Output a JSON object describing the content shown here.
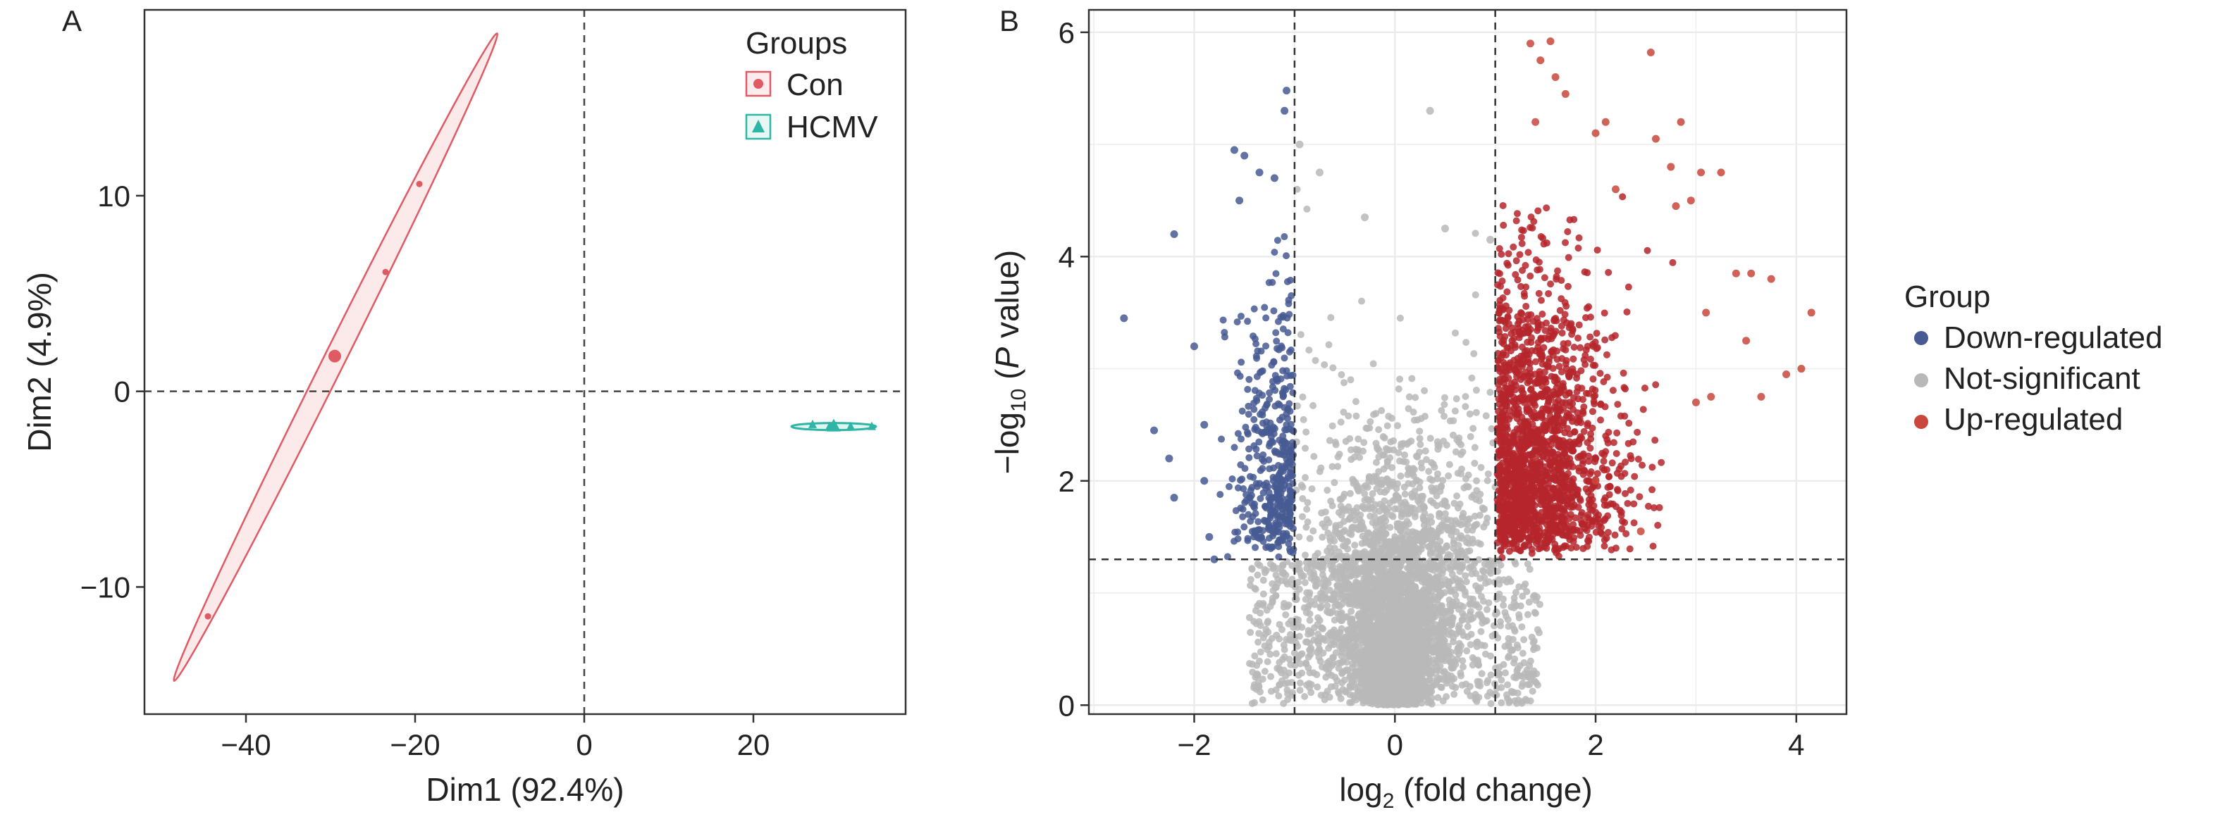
{
  "panels": {
    "a_label": "A",
    "b_label": "B"
  },
  "colors": {
    "con": "#e05a63",
    "hcmv": "#2fb5a5",
    "down": "#475a93",
    "ns": "#b8b8b8",
    "up": "#b5262b",
    "up_light": "#c9473b"
  },
  "chart_data": [
    {
      "type": "scatter",
      "xlabel": "Dim1 (92.4%)",
      "ylabel": "Dim2 (4.9%)",
      "xlim": [
        -52,
        38
      ],
      "ylim": [
        -16.5,
        19.5
      ],
      "xticks": [
        -40,
        -20,
        0,
        20
      ],
      "xtick_labels": [
        "−40",
        "−20",
        "0",
        "20"
      ],
      "yticks": [
        -10,
        0,
        10
      ],
      "ytick_labels": [
        "−10",
        "0",
        "10"
      ],
      "reference_lines": {
        "x": 0,
        "y": 0
      },
      "grid": false,
      "legend_position": "top-right",
      "legend_title": "Groups",
      "series": [
        {
          "name": "Con",
          "marker": "circle",
          "points": [
            [
              -44.5,
              -11.5
            ],
            [
              -29.5,
              1.7
            ],
            [
              -23.5,
              6.1
            ],
            [
              -19.5,
              10.6
            ]
          ],
          "centroid": [
            -29.5,
            1.8
          ],
          "ellipse": [
            [
              -48.5,
              -14.8
            ],
            [
              -10.3,
              18.3
            ]
          ]
        },
        {
          "name": "HCMV",
          "marker": "triangle",
          "points": [
            [
              27.0,
              -1.7
            ],
            [
              29.0,
              -1.8
            ],
            [
              31.5,
              -1.8
            ],
            [
              34.0,
              -1.8
            ]
          ],
          "centroid": [
            29.5,
            -1.8
          ],
          "ellipse": [
            [
              24.5,
              -1.8
            ],
            [
              34.5,
              -1.8
            ]
          ]
        }
      ]
    },
    {
      "type": "scatter",
      "xlabel_main": "log",
      "xlabel_sub": "2",
      "xlabel_rest": " (fold change)",
      "ylabel_pre": "−log",
      "ylabel_sub": "10",
      "ylabel_open": " (",
      "ylabel_p": "P",
      "ylabel_close": " value)",
      "xlim": [
        -3.05,
        4.5
      ],
      "ylim": [
        -0.08,
        6.2
      ],
      "xticks": [
        -2,
        0,
        2,
        4
      ],
      "xtick_labels": [
        "−2",
        "0",
        "2",
        "4"
      ],
      "yticks": [
        0,
        2,
        4,
        6
      ],
      "ytick_labels": [
        "0",
        "2",
        "4",
        "6"
      ],
      "thresholds": {
        "log2fc": [
          -1,
          1
        ],
        "neg_log10_p": 1.3
      },
      "grid": true,
      "legend_position": "right",
      "legend_title": "Group",
      "series": [
        {
          "name": "Down-regulated",
          "highlight_points": [
            [
              -2.7,
              3.45
            ],
            [
              -2.2,
              4.2
            ],
            [
              -2.4,
              2.45
            ],
            [
              -2.2,
              1.85
            ],
            [
              -2.25,
              2.2
            ],
            [
              -2.0,
              3.2
            ],
            [
              -1.9,
              2.5
            ],
            [
              -1.85,
              1.5
            ],
            [
              -1.8,
              1.3
            ],
            [
              -1.6,
              4.95
            ],
            [
              -1.55,
              4.5
            ],
            [
              -1.5,
              4.9
            ],
            [
              -1.35,
              4.75
            ],
            [
              -1.08,
              5.48
            ],
            [
              -1.1,
              5.3
            ],
            [
              -1.2,
              4.7
            ],
            [
              -1.9,
              2.0
            ]
          ]
        },
        {
          "name": "Not-significant",
          "highlight_points": [
            [
              0.35,
              5.3
            ],
            [
              -0.75,
              4.75
            ],
            [
              -0.3,
              4.35
            ],
            [
              0.5,
              4.25
            ],
            [
              0.95,
              4.15
            ],
            [
              -0.95,
              5.0
            ]
          ]
        },
        {
          "name": "Up-regulated",
          "highlight_points": [
            [
              1.35,
              5.9
            ],
            [
              1.55,
              5.92
            ],
            [
              2.55,
              5.82
            ],
            [
              1.45,
              5.75
            ],
            [
              1.7,
              5.45
            ],
            [
              1.6,
              5.6
            ],
            [
              1.4,
              5.2
            ],
            [
              2.0,
              5.1
            ],
            [
              2.1,
              5.2
            ],
            [
              2.6,
              5.05
            ],
            [
              2.85,
              5.2
            ],
            [
              2.75,
              4.8
            ],
            [
              3.05,
              4.75
            ],
            [
              3.25,
              4.75
            ],
            [
              2.8,
              4.45
            ],
            [
              3.4,
              3.85
            ],
            [
              3.55,
              3.85
            ],
            [
              3.75,
              3.8
            ],
            [
              4.15,
              3.5
            ],
            [
              3.5,
              3.25
            ],
            [
              4.05,
              3.0
            ],
            [
              3.15,
              2.75
            ],
            [
              3.65,
              2.75
            ],
            [
              3.9,
              2.95
            ],
            [
              2.0,
              2.0
            ],
            [
              2.45,
              1.55
            ],
            [
              3.0,
              2.7
            ],
            [
              3.1,
              3.5
            ],
            [
              2.2,
              4.6
            ],
            [
              2.95,
              4.5
            ]
          ]
        }
      ]
    }
  ]
}
